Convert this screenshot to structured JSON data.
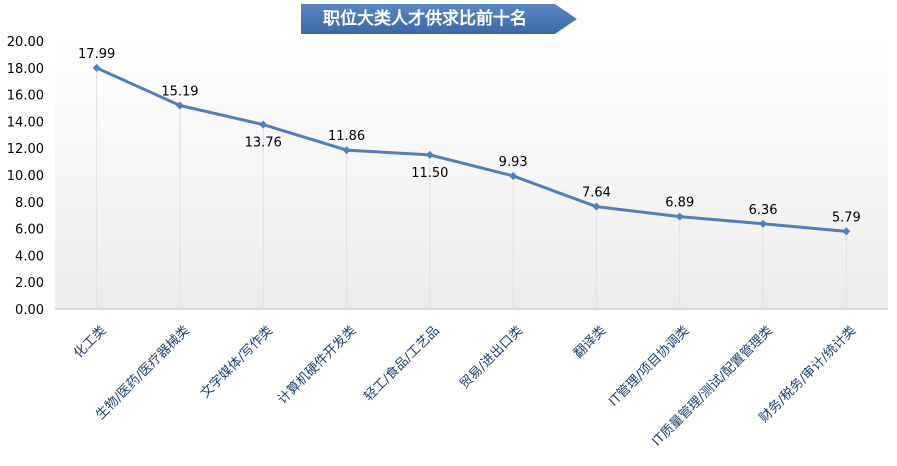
{
  "chart_data": {
    "type": "line",
    "title": "职位大类人才供求比前十名",
    "categories": [
      "化工类",
      "生物/医药/医疗器械类",
      "文字媒体/写作类",
      "计算机硬件开发类",
      "轻工/食品/工艺品",
      "贸易/进出口类",
      "翻译类",
      "IT管理/项目协调类",
      "IT质量管理/测试/配置管理类",
      "财务/税务/审计/统计类"
    ],
    "values": [
      17.99,
      15.19,
      13.76,
      11.86,
      11.5,
      9.93,
      7.64,
      6.89,
      6.36,
      5.79
    ],
    "label_positions": [
      "above",
      "above",
      "below",
      "above",
      "below",
      "above",
      "above",
      "above",
      "above",
      "above"
    ],
    "ylim": [
      0,
      20
    ],
    "yticks": [
      "0.00",
      "2.00",
      "4.00",
      "6.00",
      "8.00",
      "10.00",
      "12.00",
      "14.00",
      "16.00",
      "18.00",
      "20.00"
    ],
    "line_color": "#4f7fbf",
    "grid": "vertical category lines",
    "legend": "none"
  }
}
